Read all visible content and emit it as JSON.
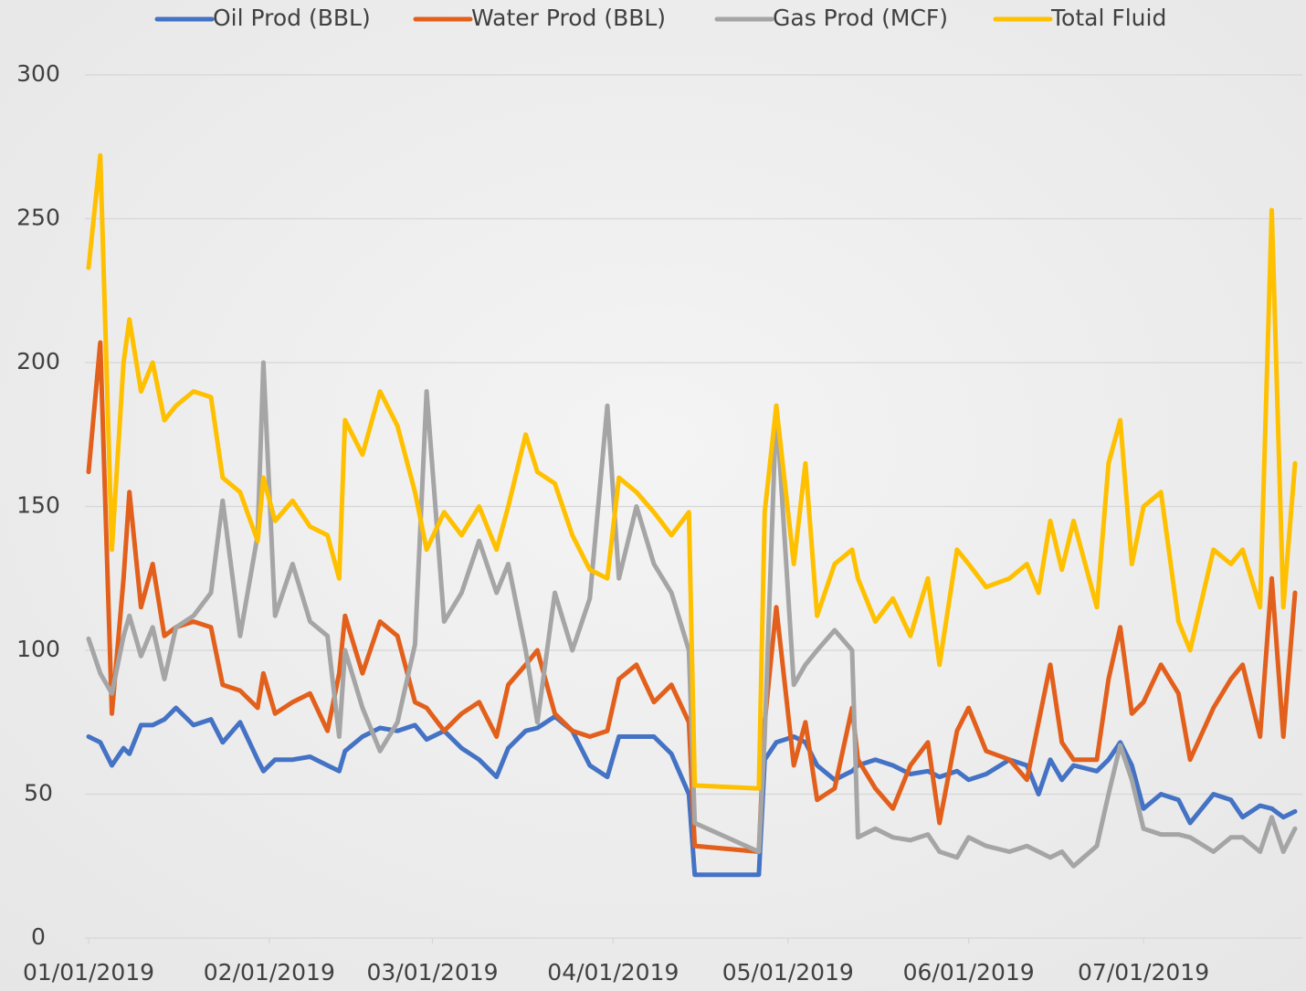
{
  "chart_data": {
    "type": "line",
    "x": [
      "01/01/2019",
      "01/03/2019",
      "01/05/2019",
      "01/07/2019",
      "01/08/2019",
      "01/10/2019",
      "01/12/2019",
      "01/14/2019",
      "01/16/2019",
      "01/19/2019",
      "01/22/2019",
      "01/24/2019",
      "01/27/2019",
      "01/30/2019",
      "01/31/2019",
      "02/02/2019",
      "02/05/2019",
      "02/08/2019",
      "02/11/2019",
      "02/13/2019",
      "02/14/2019",
      "02/17/2019",
      "02/20/2019",
      "02/23/2019",
      "02/26/2019",
      "02/28/2019",
      "03/03/2019",
      "03/06/2019",
      "03/09/2019",
      "03/12/2019",
      "03/14/2019",
      "03/17/2019",
      "03/19/2019",
      "03/22/2019",
      "03/25/2019",
      "03/28/2019",
      "03/31/2019",
      "04/02/2019",
      "04/05/2019",
      "04/08/2019",
      "04/11/2019",
      "04/14/2019",
      "04/15/2019",
      "04/26/2019",
      "04/27/2019",
      "04/29/2019",
      "05/02/2019",
      "05/04/2019",
      "05/06/2019",
      "05/09/2019",
      "05/12/2019",
      "05/13/2019",
      "05/16/2019",
      "05/19/2019",
      "05/22/2019",
      "05/25/2019",
      "05/27/2019",
      "05/30/2019",
      "06/01/2019",
      "06/04/2019",
      "06/08/2019",
      "06/11/2019",
      "06/13/2019",
      "06/15/2019",
      "06/17/2019",
      "06/19/2019",
      "06/23/2019",
      "06/25/2019",
      "06/27/2019",
      "06/29/2019",
      "07/01/2019",
      "07/04/2019",
      "07/07/2019",
      "07/09/2019",
      "07/13/2019",
      "07/16/2019",
      "07/18/2019",
      "07/21/2019",
      "07/23/2019",
      "07/25/2019",
      "07/27/2019"
    ],
    "series": [
      {
        "name": "Oil Prod (BBL)",
        "color": "#4472c4",
        "values": [
          70,
          68,
          60,
          66,
          64,
          74,
          74,
          76,
          80,
          74,
          76,
          68,
          75,
          62,
          58,
          62,
          62,
          63,
          60,
          58,
          65,
          70,
          73,
          72,
          74,
          69,
          72,
          66,
          62,
          56,
          66,
          72,
          73,
          77,
          72,
          60,
          56,
          70,
          70,
          70,
          64,
          50,
          22,
          22,
          62,
          68,
          70,
          68,
          60,
          55,
          58,
          60,
          62,
          60,
          57,
          58,
          56,
          58,
          55,
          57,
          62,
          60,
          50,
          62,
          55,
          60,
          58,
          62,
          68,
          60,
          45,
          50,
          48,
          40,
          50,
          48,
          42,
          46,
          45,
          42,
          44
        ]
      },
      {
        "name": "Water Prod (BBL)",
        "color": "#e2601c",
        "values": [
          162,
          207,
          78,
          125,
          155,
          115,
          130,
          105,
          108,
          110,
          108,
          88,
          86,
          80,
          92,
          78,
          82,
          85,
          72,
          92,
          112,
          92,
          110,
          105,
          82,
          80,
          72,
          78,
          82,
          70,
          88,
          95,
          100,
          78,
          72,
          70,
          72,
          90,
          95,
          82,
          88,
          75,
          32,
          30,
          75,
          115,
          60,
          75,
          48,
          52,
          80,
          62,
          52,
          45,
          60,
          68,
          40,
          72,
          80,
          65,
          62,
          55,
          75,
          95,
          68,
          62,
          62,
          90,
          108,
          78,
          82,
          95,
          85,
          62,
          80,
          90,
          95,
          70,
          125,
          70,
          120
        ]
      },
      {
        "name": "Gas Prod (MCF)",
        "color": "#a5a5a5",
        "values": [
          104,
          92,
          85,
          105,
          112,
          98,
          108,
          90,
          108,
          112,
          120,
          152,
          105,
          140,
          200,
          112,
          130,
          110,
          105,
          70,
          100,
          80,
          65,
          75,
          102,
          190,
          110,
          120,
          138,
          120,
          130,
          100,
          75,
          120,
          100,
          118,
          185,
          125,
          150,
          130,
          120,
          100,
          40,
          30,
          70,
          185,
          88,
          95,
          100,
          107,
          100,
          35,
          38,
          35,
          34,
          36,
          30,
          28,
          35,
          32,
          30,
          32,
          30,
          28,
          30,
          25,
          32,
          50,
          67,
          55,
          38,
          36,
          36,
          35,
          30,
          35,
          35,
          30,
          42,
          30,
          38
        ]
      },
      {
        "name": "Total Fluid",
        "color": "#ffc000",
        "values": [
          233,
          272,
          135,
          200,
          215,
          190,
          200,
          180,
          185,
          190,
          188,
          160,
          155,
          138,
          160,
          145,
          152,
          143,
          140,
          125,
          180,
          168,
          190,
          178,
          155,
          135,
          148,
          140,
          150,
          135,
          150,
          175,
          162,
          158,
          140,
          128,
          125,
          160,
          155,
          148,
          140,
          148,
          53,
          52,
          148,
          185,
          130,
          165,
          112,
          130,
          135,
          125,
          110,
          118,
          105,
          125,
          95,
          135,
          130,
          122,
          125,
          130,
          120,
          145,
          128,
          145,
          115,
          165,
          180,
          130,
          150,
          155,
          110,
          100,
          135,
          130,
          135,
          115,
          253,
          115,
          165
        ]
      }
    ],
    "xlim": [
      "01/01/2019",
      "07/27/2019"
    ],
    "xticks": [
      "01/01/2019",
      "02/01/2019",
      "03/01/2019",
      "04/01/2019",
      "05/01/2019",
      "06/01/2019",
      "07/01/2019"
    ],
    "ylim": [
      0,
      300
    ],
    "yticks": [
      0,
      50,
      100,
      150,
      200,
      250,
      300
    ],
    "grid": true,
    "legend": "top"
  }
}
